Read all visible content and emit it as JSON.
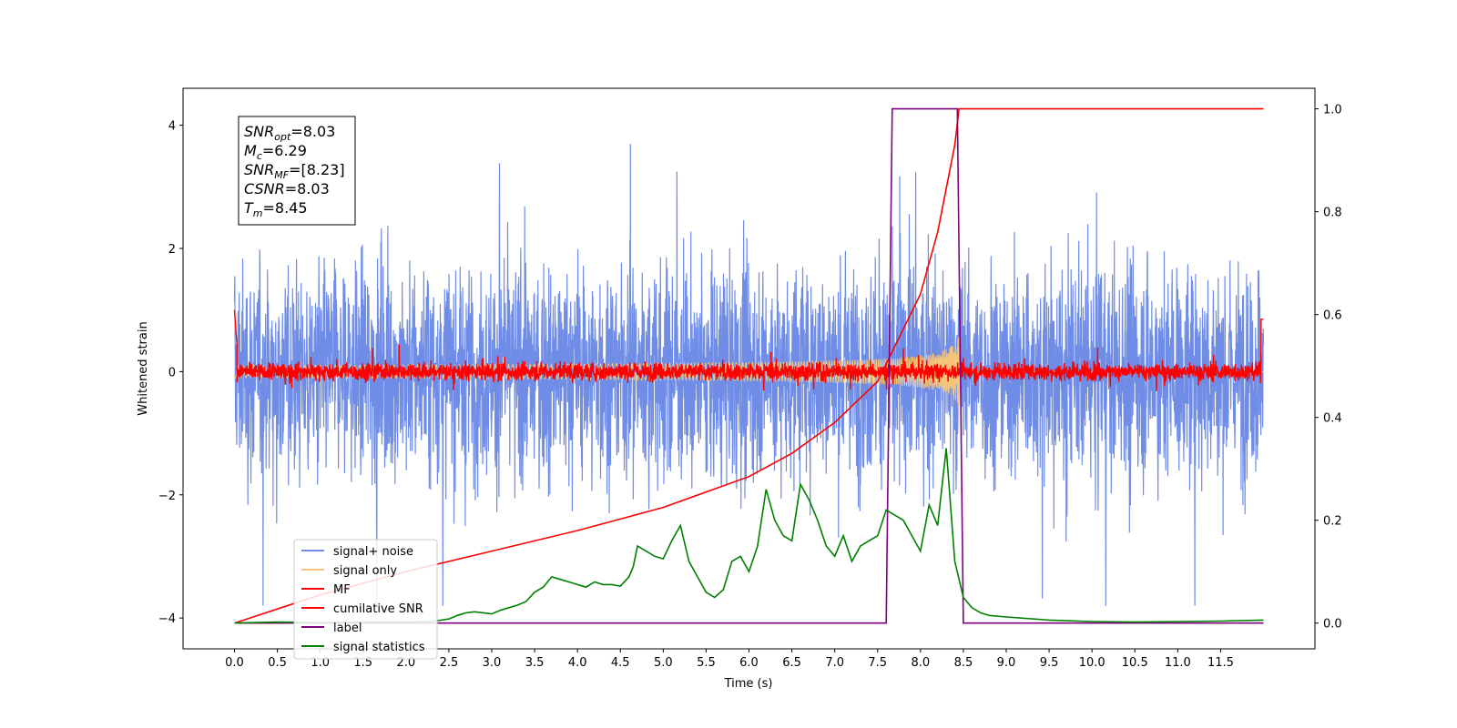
{
  "chart_data": {
    "type": "line",
    "xlabel": "Time (s)",
    "ylabel": "Whitened strain",
    "xlim": [
      -0.6,
      12.6
    ],
    "ylim": [
      -4.5,
      4.6
    ],
    "y2lim": [
      -0.05,
      1.04
    ],
    "x_ticks": [
      "0.0",
      "0.5",
      "1.0",
      "1.5",
      "2.0",
      "2.5",
      "3.0",
      "3.5",
      "4.0",
      "4.5",
      "5.0",
      "5.5",
      "6.0",
      "6.5",
      "7.0",
      "7.5",
      "8.0",
      "8.5",
      "9.0",
      "9.5",
      "10.0",
      "10.5",
      "11.0",
      "11.5"
    ],
    "y_ticks": [
      "−4",
      "−2",
      "0",
      "2",
      "4"
    ],
    "y2_ticks": [
      "0.0",
      "0.2",
      "0.4",
      "0.6",
      "0.8",
      "1.0"
    ],
    "annotation": [
      {
        "base": "SNR",
        "sub": "opt",
        "value": "=8.03"
      },
      {
        "base": "M",
        "sub": "c",
        "value": "=6.29"
      },
      {
        "base": "SNR",
        "sub": "MF",
        "value": "=[8.23]"
      },
      {
        "base": "CSNR",
        "sub": "",
        "value": "=8.03"
      },
      {
        "base": "T",
        "sub": "m",
        "value": "=8.45"
      }
    ],
    "legend_position": "lower-left",
    "series": [
      {
        "name": "signal+ noise",
        "color": "#6f8de6",
        "axis": "left",
        "description": "whitened strain noise, approx. ±1.5 (peaks to ±3.8) over 0–12 s"
      },
      {
        "name": "signal only",
        "color": "#f5c57a",
        "axis": "left",
        "description": "chirp waveform growing to amplitude ~0.6 near 8.45 s"
      },
      {
        "name": "MF",
        "color": "#ff0000",
        "axis": "left",
        "description": "matched-filter output, approx. ±0.2 around 0"
      },
      {
        "name": "cumilative SNR",
        "color": "#ff0000",
        "axis": "right",
        "x": [
          0,
          1,
          2,
          3,
          4,
          5,
          6,
          6.5,
          7,
          7.5,
          8,
          8.2,
          8.4,
          8.45,
          12
        ],
        "y": [
          0,
          0.055,
          0.1,
          0.14,
          0.18,
          0.225,
          0.285,
          0.33,
          0.39,
          0.47,
          0.64,
          0.76,
          0.93,
          1.0,
          1.0
        ]
      },
      {
        "name": "label",
        "color": "#800080",
        "axis": "right",
        "x": [
          0,
          7.6,
          7.67,
          8.43,
          8.5,
          12
        ],
        "y": [
          0,
          0,
          1,
          1,
          0,
          0
        ]
      },
      {
        "name": "signal statistics",
        "color": "#008000",
        "axis": "right",
        "x": [
          0,
          0.5,
          1,
          1.5,
          2,
          2.3,
          2.5,
          2.6,
          2.7,
          2.8,
          2.9,
          3.0,
          3.1,
          3.2,
          3.3,
          3.4,
          3.5,
          3.6,
          3.7,
          3.8,
          3.9,
          4.0,
          4.1,
          4.2,
          4.3,
          4.4,
          4.5,
          4.6,
          4.65,
          4.7,
          4.8,
          4.9,
          5.0,
          5.1,
          5.2,
          5.3,
          5.4,
          5.5,
          5.6,
          5.7,
          5.8,
          5.9,
          6.0,
          6.1,
          6.2,
          6.3,
          6.4,
          6.5,
          6.6,
          6.7,
          6.8,
          6.9,
          7.0,
          7.1,
          7.2,
          7.3,
          7.4,
          7.5,
          7.6,
          7.7,
          7.8,
          7.9,
          8.0,
          8.1,
          8.2,
          8.3,
          8.4,
          8.5,
          8.6,
          8.7,
          8.8,
          9.0,
          9.5,
          10.0,
          10.5,
          11.0,
          11.5,
          12.0
        ],
        "y": [
          0.0,
          0.002,
          0.001,
          0.002,
          0.002,
          0.003,
          0.008,
          0.015,
          0.02,
          0.022,
          0.02,
          0.018,
          0.025,
          0.03,
          0.035,
          0.042,
          0.06,
          0.07,
          0.09,
          0.085,
          0.08,
          0.075,
          0.07,
          0.08,
          0.075,
          0.075,
          0.072,
          0.09,
          0.11,
          0.15,
          0.14,
          0.13,
          0.125,
          0.16,
          0.19,
          0.12,
          0.09,
          0.06,
          0.05,
          0.065,
          0.12,
          0.13,
          0.1,
          0.15,
          0.26,
          0.2,
          0.17,
          0.16,
          0.27,
          0.24,
          0.2,
          0.15,
          0.13,
          0.17,
          0.12,
          0.15,
          0.16,
          0.17,
          0.22,
          0.21,
          0.2,
          0.17,
          0.14,
          0.23,
          0.19,
          0.34,
          0.12,
          0.05,
          0.03,
          0.02,
          0.015,
          0.012,
          0.006,
          0.003,
          0.002,
          0.003,
          0.004,
          0.006
        ]
      }
    ]
  }
}
